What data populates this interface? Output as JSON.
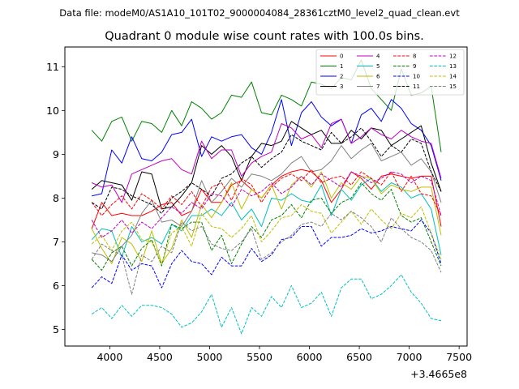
{
  "header": {
    "file_line": "Data file: modeM0/AS1A10_101T02_9000004084_28361cztM0_level2_quad_clean.evt"
  },
  "chart_data": {
    "type": "line",
    "title": "Quadrant 0 module wise count rates with 100.0s bins.",
    "xlabel": "",
    "ylabel": "",
    "x_offset_label": "+3.4665e8",
    "xlim": [
      3550,
      7580
    ],
    "ylim": [
      4.62,
      11.45
    ],
    "x_ticks": [
      4000,
      4500,
      5000,
      5500,
      6000,
      6500,
      7000,
      7500
    ],
    "x_tick_labels": [
      "4000",
      "4500",
      "5000",
      "5500",
      "6000",
      "6500",
      "7000",
      "7500"
    ],
    "y_ticks": [
      5,
      6,
      7,
      8,
      9,
      10,
      11
    ],
    "y_tick_labels": [
      "5",
      "6",
      "7",
      "8",
      "9",
      "10",
      "11"
    ],
    "legend_position": "top-right",
    "x": [
      3820,
      3920,
      4020,
      4120,
      4220,
      4320,
      4420,
      4520,
      4620,
      4720,
      4820,
      4920,
      5020,
      5120,
      5220,
      5320,
      5420,
      5520,
      5620,
      5720,
      5820,
      5920,
      6020,
      6120,
      6220,
      6320,
      6420,
      6520,
      6620,
      6720,
      6820,
      6920,
      7020,
      7120,
      7220,
      7320
    ],
    "series": [
      {
        "name": "0",
        "color": "#ff0000",
        "dash": "solid",
        "values": [
          7.3,
          7.9,
          7.6,
          7.65,
          7.6,
          7.6,
          7.7,
          7.85,
          7.9,
          7.6,
          7.7,
          8.2,
          7.9,
          7.9,
          8.3,
          8.4,
          8.2,
          8.0,
          8.3,
          8.5,
          8.6,
          8.65,
          8.6,
          8.4,
          7.9,
          8.2,
          8.6,
          8.45,
          8.2,
          8.5,
          8.55,
          8.5,
          8.45,
          8.5,
          8.5,
          7.35
        ]
      },
      {
        "name": "1",
        "color": "#008000",
        "dash": "solid",
        "values": [
          9.55,
          9.3,
          9.75,
          9.85,
          9.3,
          9.75,
          9.7,
          9.5,
          10.0,
          9.65,
          10.2,
          10.05,
          9.8,
          9.95,
          10.35,
          10.3,
          10.65,
          9.95,
          9.9,
          10.35,
          10.25,
          10.1,
          10.65,
          10.6,
          10.5,
          10.75,
          10.7,
          11.15,
          10.5,
          10.25,
          10.0,
          10.95,
          10.35,
          10.4,
          10.55,
          9.05
        ]
      },
      {
        "name": "2",
        "color": "#0000ff",
        "dash": "solid",
        "values": [
          8.05,
          8.1,
          9.1,
          8.8,
          9.4,
          8.9,
          8.85,
          9.05,
          9.45,
          9.5,
          9.8,
          8.95,
          9.4,
          9.3,
          9.4,
          9.45,
          9.15,
          9.0,
          9.5,
          10.25,
          9.2,
          9.95,
          10.2,
          9.85,
          9.65,
          9.8,
          9.25,
          9.9,
          10.05,
          9.75,
          10.25,
          10.05,
          9.7,
          9.55,
          9.2,
          8.4
        ]
      },
      {
        "name": "3",
        "color": "#000000",
        "dash": "solid",
        "values": [
          8.2,
          8.4,
          8.35,
          8.3,
          7.95,
          8.6,
          8.55,
          7.75,
          7.8,
          8.05,
          8.35,
          9.2,
          9.0,
          9.2,
          8.95,
          8.4,
          8.95,
          9.25,
          9.2,
          9.3,
          9.75,
          9.6,
          9.45,
          9.55,
          9.25,
          9.25,
          9.55,
          9.35,
          9.6,
          9.55,
          9.2,
          9.35,
          9.5,
          9.65,
          8.8,
          8.15
        ]
      },
      {
        "name": "4",
        "color": "#bf00bf",
        "dash": "solid",
        "values": [
          8.35,
          8.25,
          8.3,
          7.9,
          8.55,
          8.65,
          8.75,
          8.85,
          8.9,
          8.65,
          8.55,
          9.3,
          8.9,
          9.1,
          9.1,
          8.5,
          8.8,
          8.95,
          9.05,
          9.7,
          9.6,
          9.35,
          9.45,
          9.15,
          9.7,
          9.8,
          9.25,
          9.4,
          9.6,
          9.45,
          9.35,
          9.55,
          9.4,
          9.3,
          9.25,
          8.45
        ]
      },
      {
        "name": "5",
        "color": "#00bfbf",
        "dash": "solid",
        "values": [
          7.05,
          7.3,
          7.25,
          6.65,
          7.35,
          7.0,
          7.1,
          6.95,
          7.4,
          7.25,
          7.6,
          7.6,
          7.75,
          7.6,
          7.9,
          7.5,
          7.75,
          7.35,
          8.0,
          7.95,
          8.1,
          7.95,
          7.9,
          8.3,
          7.6,
          8.2,
          7.95,
          8.3,
          8.45,
          8.15,
          8.35,
          8.25,
          8.0,
          8.1,
          7.75,
          6.7
        ]
      },
      {
        "name": "6",
        "color": "#bfbf00",
        "dash": "solid",
        "values": [
          7.3,
          6.85,
          6.5,
          7.1,
          6.95,
          6.55,
          7.25,
          6.5,
          6.85,
          7.5,
          7.1,
          7.85,
          7.55,
          7.9,
          8.35,
          7.75,
          8.2,
          8.0,
          8.3,
          7.75,
          8.3,
          8.5,
          8.25,
          8.6,
          8.0,
          8.35,
          8.2,
          8.5,
          8.45,
          8.1,
          8.3,
          8.2,
          8.15,
          8.25,
          8.25,
          7.15
        ]
      },
      {
        "name": "7",
        "color": "#808080",
        "dash": "solid",
        "values": [
          6.75,
          6.7,
          6.55,
          6.9,
          7.15,
          7.65,
          7.95,
          7.45,
          7.5,
          7.35,
          7.7,
          8.4,
          7.9,
          8.15,
          8.45,
          8.25,
          8.55,
          8.5,
          8.4,
          8.55,
          8.8,
          8.95,
          8.6,
          8.65,
          8.85,
          9.2,
          8.9,
          9.1,
          9.25,
          8.85,
          8.95,
          9.05,
          8.75,
          8.9,
          8.6,
          7.9
        ]
      },
      {
        "name": "8",
        "color": "#ff0000",
        "dash": "dashed",
        "values": [
          7.9,
          7.6,
          7.85,
          8.05,
          7.75,
          8.1,
          7.95,
          7.75,
          8.05,
          7.85,
          8.15,
          7.8,
          8.25,
          8.35,
          7.95,
          8.45,
          8.3,
          7.9,
          8.25,
          8.45,
          8.55,
          8.4,
          8.65,
          8.35,
          8.45,
          8.5,
          8.3,
          8.6,
          8.45,
          8.3,
          8.6,
          8.15,
          8.5,
          8.1,
          8.05,
          7.6
        ]
      },
      {
        "name": "9",
        "color": "#008000",
        "dash": "dashed",
        "values": [
          6.6,
          6.35,
          6.75,
          6.9,
          6.45,
          6.85,
          7.05,
          6.45,
          7.4,
          7.3,
          7.45,
          7.45,
          6.8,
          7.15,
          6.5,
          6.95,
          7.35,
          7.1,
          7.5,
          7.6,
          7.85,
          7.55,
          7.95,
          8.0,
          7.65,
          7.9,
          8.0,
          8.35,
          8.1,
          7.95,
          8.2,
          7.6,
          7.45,
          7.55,
          7.0,
          6.45
        ]
      },
      {
        "name": "10",
        "color": "#0000ff",
        "dash": "dashed",
        "values": [
          5.95,
          6.2,
          6.05,
          6.7,
          6.35,
          6.5,
          6.45,
          5.95,
          6.5,
          6.8,
          6.55,
          6.5,
          6.25,
          6.65,
          6.45,
          6.45,
          6.85,
          6.55,
          6.7,
          7.05,
          7.1,
          7.35,
          7.35,
          6.9,
          7.1,
          7.1,
          7.15,
          7.3,
          7.2,
          7.25,
          7.35,
          7.3,
          7.25,
          7.5,
          7.2,
          6.5
        ]
      },
      {
        "name": "11",
        "color": "#000000",
        "dash": "dashed",
        "values": [
          7.9,
          7.75,
          8.25,
          8.2,
          8.05,
          7.95,
          7.85,
          7.65,
          8.0,
          8.15,
          8.35,
          8.2,
          8.05,
          8.45,
          8.55,
          8.8,
          8.95,
          8.7,
          8.9,
          9.05,
          9.45,
          9.3,
          9.2,
          9.1,
          9.5,
          9.25,
          9.4,
          9.6,
          9.3,
          8.95,
          9.2,
          9.05,
          9.35,
          9.25,
          8.6,
          8.15
        ]
      },
      {
        "name": "12",
        "color": "#bf00bf",
        "dash": "dashed",
        "values": [
          7.5,
          7.1,
          7.25,
          7.5,
          7.2,
          7.45,
          7.3,
          7.55,
          7.8,
          7.65,
          7.9,
          7.75,
          8.1,
          8.05,
          7.8,
          8.2,
          8.05,
          8.15,
          8.35,
          8.1,
          8.25,
          8.5,
          8.3,
          8.55,
          8.4,
          8.25,
          8.6,
          8.5,
          8.35,
          8.45,
          8.6,
          8.55,
          8.35,
          8.5,
          8.4,
          7.6
        ]
      },
      {
        "name": "13",
        "color": "#00bfbf",
        "dash": "dashed",
        "values": [
          5.35,
          5.5,
          5.25,
          5.55,
          5.3,
          5.55,
          5.55,
          5.5,
          5.35,
          5.05,
          5.15,
          5.4,
          5.8,
          5.05,
          5.5,
          4.9,
          5.5,
          5.3,
          5.75,
          5.5,
          6.0,
          5.5,
          5.6,
          5.85,
          5.3,
          5.95,
          6.15,
          6.15,
          5.7,
          5.8,
          6.0,
          6.25,
          5.85,
          5.6,
          5.25,
          5.2
        ]
      },
      {
        "name": "14",
        "color": "#bfbf00",
        "dash": "dashed",
        "values": [
          6.95,
          7.15,
          6.8,
          7.25,
          7.45,
          7.05,
          7.0,
          6.5,
          7.2,
          7.35,
          6.9,
          7.65,
          7.35,
          7.3,
          7.1,
          7.3,
          7.6,
          7.0,
          7.25,
          7.55,
          7.6,
          7.85,
          7.7,
          7.65,
          7.2,
          7.45,
          7.7,
          7.4,
          7.75,
          7.5,
          7.3,
          7.65,
          7.55,
          7.8,
          7.2,
          6.6
        ]
      },
      {
        "name": "15",
        "color": "#808080",
        "dash": "dashed",
        "values": [
          6.6,
          6.95,
          6.8,
          6.7,
          5.8,
          6.7,
          6.55,
          6.9,
          6.75,
          7.45,
          7.25,
          7.35,
          6.95,
          6.85,
          6.8,
          7.0,
          7.3,
          6.6,
          6.75,
          7.0,
          7.15,
          7.4,
          7.45,
          7.35,
          7.65,
          7.5,
          7.7,
          7.55,
          7.35,
          7.0,
          7.55,
          7.3,
          7.1,
          7.0,
          6.8,
          6.3
        ]
      }
    ]
  }
}
